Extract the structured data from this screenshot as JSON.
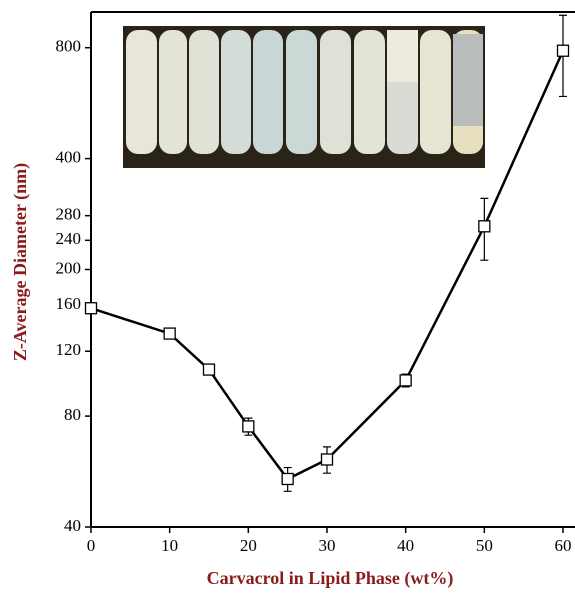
{
  "chart_data": {
    "type": "line",
    "xlabel": "Carvacrol in Lipid Phase (wt%)",
    "ylabel": "Z-Average Diameter (nm)",
    "x": [
      0,
      10,
      15,
      20,
      25,
      30,
      40,
      50,
      60
    ],
    "series": [
      {
        "color": "#000000",
        "values": [
          157,
          134,
          107,
          75,
          54,
          61,
          100,
          262,
          785
        ],
        "errors": [
          3,
          4,
          3,
          4,
          4,
          5,
          4,
          50,
          195
        ]
      }
    ],
    "xlim": [
      0,
      60
    ],
    "xticks": [
      0,
      10,
      20,
      30,
      40,
      50,
      60
    ],
    "ylim": [
      40,
      1000
    ],
    "yticks": [
      40,
      80,
      120,
      160,
      200,
      240,
      280,
      400,
      800
    ],
    "log_y": true,
    "grid": false
  }
}
